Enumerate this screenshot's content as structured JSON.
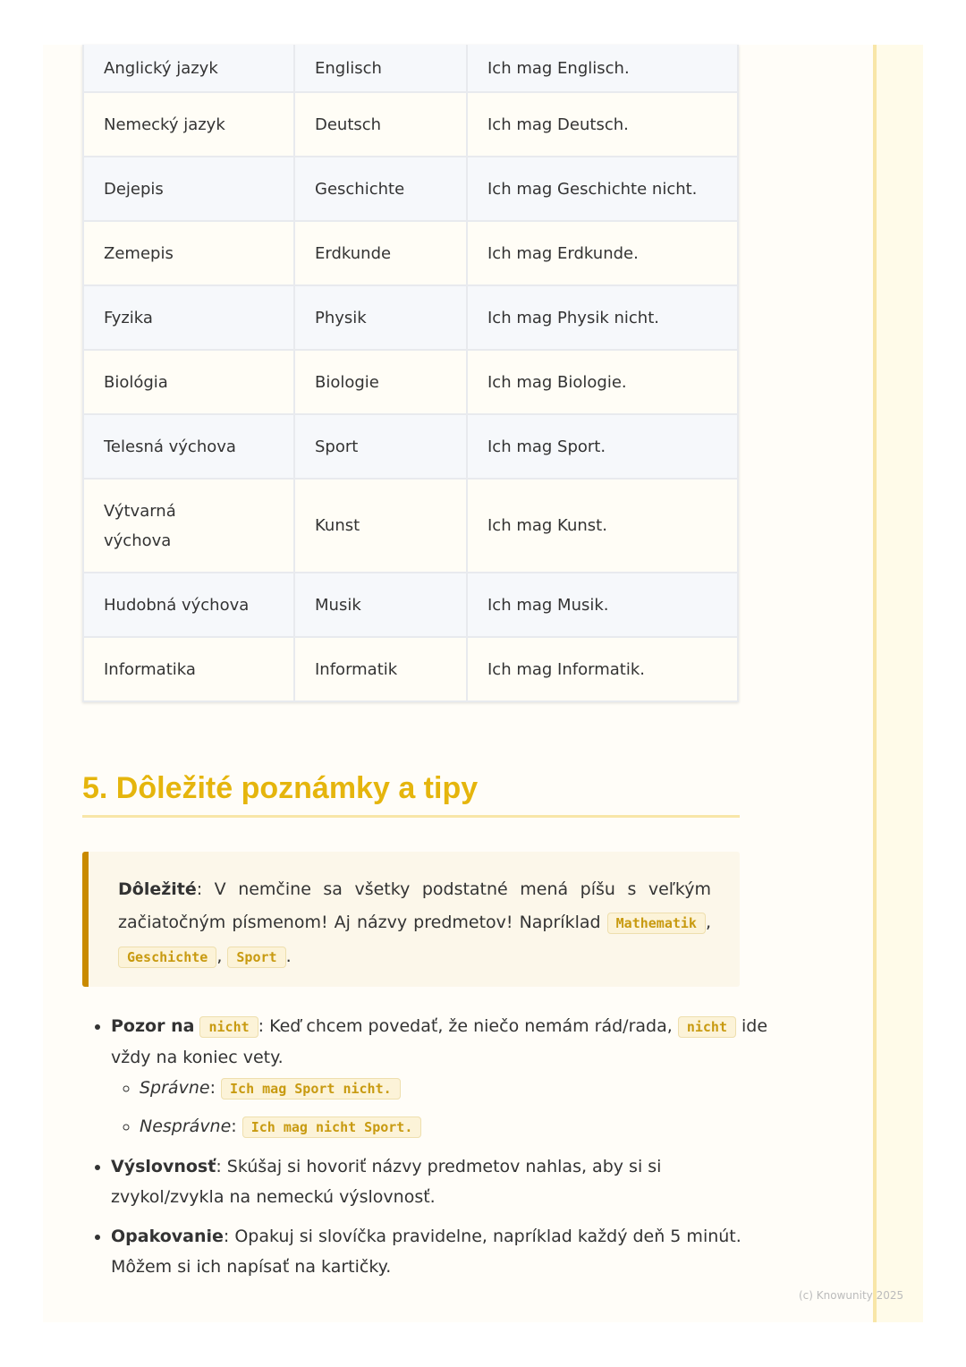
{
  "table": {
    "rows": [
      [
        "Anglický jazyk",
        "Englisch",
        "Ich mag Englisch."
      ],
      [
        "Nemecký jazyk",
        "Deutsch",
        "Ich mag Deutsch."
      ],
      [
        "Dejepis",
        "Geschichte",
        "Ich mag Geschichte nicht."
      ],
      [
        "Zemepis",
        "Erdkunde",
        "Ich mag Erdkunde."
      ],
      [
        "Fyzika",
        "Physik",
        "Ich mag Physik nicht."
      ],
      [
        "Biológia",
        "Biologie",
        "Ich mag Biologie."
      ],
      [
        "Telesná výchova",
        "Sport",
        "Ich mag Sport."
      ],
      [
        "Výtvarná výchova",
        "Kunst",
        "Ich mag Kunst."
      ],
      [
        "Hudobná výchova",
        "Musik",
        "Ich mag Musik."
      ],
      [
        "Informatika",
        "Informatik",
        "Ich mag Informatik."
      ]
    ]
  },
  "heading": "5. Dôležité poznámky a tipy",
  "callout": {
    "bold": "Dôležité",
    "text": ": V nemčine sa všetky podstatné mená píšu s veľkým začiatočným písmenom! Aj názvy predmetov! Napríklad ",
    "code1": "Mathematik",
    "sep1": ", ",
    "code2": "Geschichte",
    "sep2": ", ",
    "code3": "Sport",
    "end": "."
  },
  "bullets": {
    "b1": {
      "bold": "Pozor na",
      "code1": "nicht",
      "text": ": Keď chcem povedať, že niečo nemám rád/rada, ",
      "code2": "nicht",
      "text2": " ide vždy na koniec vety.",
      "correct_label": "Správne",
      "correct_code": "Ich mag Sport nicht.",
      "wrong_label": "Nesprávne",
      "wrong_code": "Ich mag nicht Sport."
    },
    "b2": {
      "bold": "Výslovnosť",
      "text": ": Skúšaj si hovoriť názvy predmetov nahlas, aby si si zvykol/zvykla na nemeckú výslovnosť."
    },
    "b3": {
      "bold": "Opakovanie",
      "text": ": Opakuj si slovíčka pravidelne, napríklad každý deň 5 minút. Môžem si ich napísať na kartičky."
    }
  },
  "footer": "(c) Knowunity 2025"
}
